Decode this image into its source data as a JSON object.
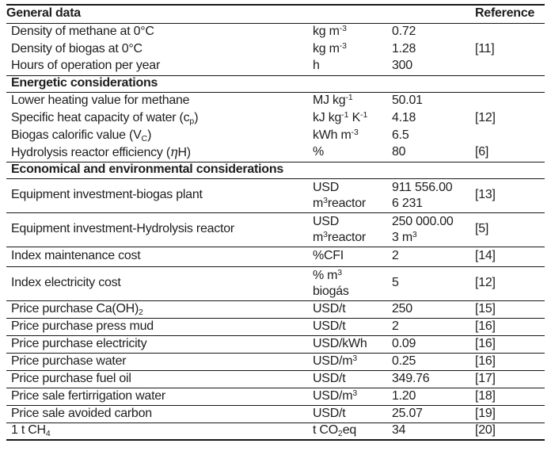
{
  "colors": {
    "background": "#ffffff",
    "text": "#1e1e1e",
    "rule": "#171717"
  },
  "header": {
    "left": "General data",
    "right": "Reference"
  },
  "sections": {
    "energetic": "Energetic considerations",
    "economical": "Economical and environmental considerations"
  },
  "rows": [
    {
      "name": "Density of methane at 0°C",
      "unit": [
        "kg m^{-3}"
      ],
      "value": [
        "0.72"
      ],
      "ref": ""
    },
    {
      "name": "Density of biogas at 0°C",
      "unit": [
        "kg m^{-3}"
      ],
      "value": [
        "1.28"
      ],
      "ref": "[11]"
    },
    {
      "name": "Hours of operation per year",
      "unit": [
        "h"
      ],
      "value": [
        "300"
      ],
      "ref": ""
    },
    {
      "name": "Lower heating value for methane",
      "unit": [
        "MJ kg^{-1}"
      ],
      "value": [
        "50.01"
      ],
      "ref": ""
    },
    {
      "name": "Specific heat capacity of water (c_{p})",
      "unit": [
        "kJ kg^{-1} K^{-1}"
      ],
      "value": [
        "4.18"
      ],
      "ref": "[12]"
    },
    {
      "name": "Biogas calorific value (V_{C})",
      "unit": [
        "kWh m^{-3}"
      ],
      "value": [
        "6.5"
      ],
      "ref": ""
    },
    {
      "name": "Hydrolysis reactor efficiency (~{η}H)",
      "unit": [
        "%"
      ],
      "value": [
        "80"
      ],
      "ref": "[6]"
    },
    {
      "name": "Equipment investment-biogas plant",
      "unit": [
        "USD",
        "m^{3}reactor"
      ],
      "value": [
        "911 556.00",
        "6 231"
      ],
      "ref": "[13]"
    },
    {
      "name": "Equipment investment-Hydrolysis reactor",
      "unit": [
        "USD",
        "m^{3}reactor"
      ],
      "value": [
        "250 000.00",
        "3 m^{3}"
      ],
      "ref": "[5]"
    },
    {
      "name": "Index maintenance cost",
      "unit": [
        "%CFI"
      ],
      "value": [
        "2"
      ],
      "ref": "[14]"
    },
    {
      "name": "Index electricity cost",
      "unit": [
        "% m^{3}",
        "biogás"
      ],
      "value": [
        "5"
      ],
      "ref": "[12]"
    },
    {
      "name": "Price purchase Ca(OH)_{2}",
      "unit": [
        "USD/t"
      ],
      "value": [
        "250"
      ],
      "ref": "[15]"
    },
    {
      "name": "Price purchase press mud",
      "unit": [
        "USD/t"
      ],
      "value": [
        "2"
      ],
      "ref": "[16]"
    },
    {
      "name": "Price purchase electricity",
      "unit": [
        "USD/kWh"
      ],
      "value": [
        "0.09"
      ],
      "ref": "[16]"
    },
    {
      "name": "Price purchase water",
      "unit": [
        "USD/m^{3}"
      ],
      "value": [
        "0.25"
      ],
      "ref": "[16]"
    },
    {
      "name": "Price purchase fuel oil",
      "unit": [
        "USD/t"
      ],
      "value": [
        "349.76"
      ],
      "ref": "[17]"
    },
    {
      "name": "Price sale fertirrigation water",
      "unit": [
        "USD/m^{3}"
      ],
      "value": [
        "1.20"
      ],
      "ref": "[18]"
    },
    {
      "name": "Price sale avoided carbon",
      "unit": [
        "USD/t"
      ],
      "value": [
        "25.07"
      ],
      "ref": "[19]"
    },
    {
      "name": "1 t CH_{4}",
      "unit": [
        "t CO_{2}eq"
      ],
      "value": [
        "34"
      ],
      "ref": "[20]"
    }
  ]
}
